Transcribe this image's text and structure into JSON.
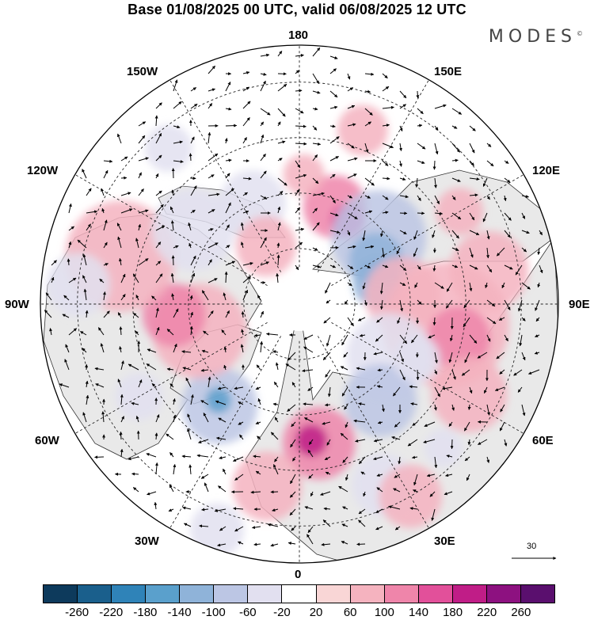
{
  "title": "Base 01/08/2025 00 UTC, valid 06/08/2025 12 UTC",
  "logo": "MODES",
  "logo_mark": "©",
  "longitude_labels": {
    "top": "180",
    "bottom": "0",
    "left": "90W",
    "right": "90E",
    "upper_left_1": "150W",
    "upper_left_2": "120W",
    "upper_right_1": "150E",
    "upper_right_2": "120E",
    "lower_left_1": "60W",
    "lower_left_2": "30W",
    "lower_right_1": "60E",
    "lower_right_2": "30E"
  },
  "reference_vector": {
    "label": "30"
  },
  "colorbar": {
    "ticks": [
      "-260",
      "-220",
      "-180",
      "-140",
      "-100",
      "-60",
      "-20",
      "20",
      "60",
      "100",
      "140",
      "180",
      "220",
      "260"
    ],
    "colors": [
      "#0d3a5c",
      "#1a5f8c",
      "#2f83b8",
      "#5aa0cc",
      "#8fb3d9",
      "#bcc6e4",
      "#e2e0f0",
      "#ffffff",
      "#f9d6d6",
      "#f5b3bf",
      "#ef85aa",
      "#e2509a",
      "#c01d87",
      "#8d1180",
      "#5a0f6e"
    ]
  },
  "anomalies": [
    {
      "lon": 160,
      "lat": 62,
      "r": 40,
      "value": 100
    },
    {
      "lon": 178,
      "lat": 55,
      "r": 26,
      "value": 60
    },
    {
      "lon": 150,
      "lat": 64,
      "r": 22,
      "value": 140
    },
    {
      "lon": 130,
      "lat": 62,
      "r": 60,
      "value": -100
    },
    {
      "lon": 120,
      "lat": 66,
      "r": 34,
      "value": -140
    },
    {
      "lon": 105,
      "lat": 68,
      "r": 32,
      "value": -140
    },
    {
      "lon": 95,
      "lat": 62,
      "r": 48,
      "value": 60
    },
    {
      "lon": 82,
      "lat": 50,
      "r": 80,
      "value": 60
    },
    {
      "lon": 78,
      "lat": 46,
      "r": 40,
      "value": 100
    },
    {
      "lon": 60,
      "lat": 62,
      "r": 54,
      "value": -60
    },
    {
      "lon": 62,
      "lat": 38,
      "r": 48,
      "value": 60
    },
    {
      "lon": 40,
      "lat": 56,
      "r": 46,
      "value": -100
    },
    {
      "lon": 8,
      "lat": 52,
      "r": 46,
      "value": 100
    },
    {
      "lon": 5,
      "lat": 53,
      "r": 20,
      "value": 180
    },
    {
      "lon": -10,
      "lat": 40,
      "r": 44,
      "value": 60
    },
    {
      "lon": 25,
      "lat": 36,
      "r": 40,
      "value": -60
    },
    {
      "lon": -38,
      "lat": 55,
      "r": 48,
      "value": -100
    },
    {
      "lon": -40,
      "lat": 56,
      "r": 16,
      "value": -180
    },
    {
      "lon": -75,
      "lat": 62,
      "r": 60,
      "value": 60
    },
    {
      "lon": -85,
      "lat": 56,
      "r": 40,
      "value": 100
    },
    {
      "lon": -105,
      "lat": 40,
      "r": 70,
      "value": 60
    },
    {
      "lon": -125,
      "lat": 55,
      "r": 52,
      "value": -60
    },
    {
      "lon": -155,
      "lat": 60,
      "r": 42,
      "value": -60
    },
    {
      "lon": -150,
      "lat": 72,
      "r": 38,
      "value": 60
    },
    {
      "lon": -60,
      "lat": 40,
      "r": 30,
      "value": -60
    },
    {
      "lon": -95,
      "lat": 30,
      "r": 40,
      "value": -60
    },
    {
      "lon": 30,
      "lat": 30,
      "r": 40,
      "value": 60
    },
    {
      "lon": 100,
      "lat": 38,
      "r": 50,
      "value": 60
    },
    {
      "lon": 120,
      "lat": 40,
      "r": 30,
      "value": 60
    },
    {
      "lon": 45,
      "lat": 35,
      "r": 24,
      "value": -60
    },
    {
      "lon": 65,
      "lat": 55,
      "r": 30,
      "value": -60
    },
    {
      "lon": -20,
      "lat": 25,
      "r": 34,
      "value": -60
    },
    {
      "lon": -140,
      "lat": 35,
      "r": 30,
      "value": -60
    },
    {
      "lon": 160,
      "lat": 40,
      "r": 32,
      "value": 60
    }
  ]
}
